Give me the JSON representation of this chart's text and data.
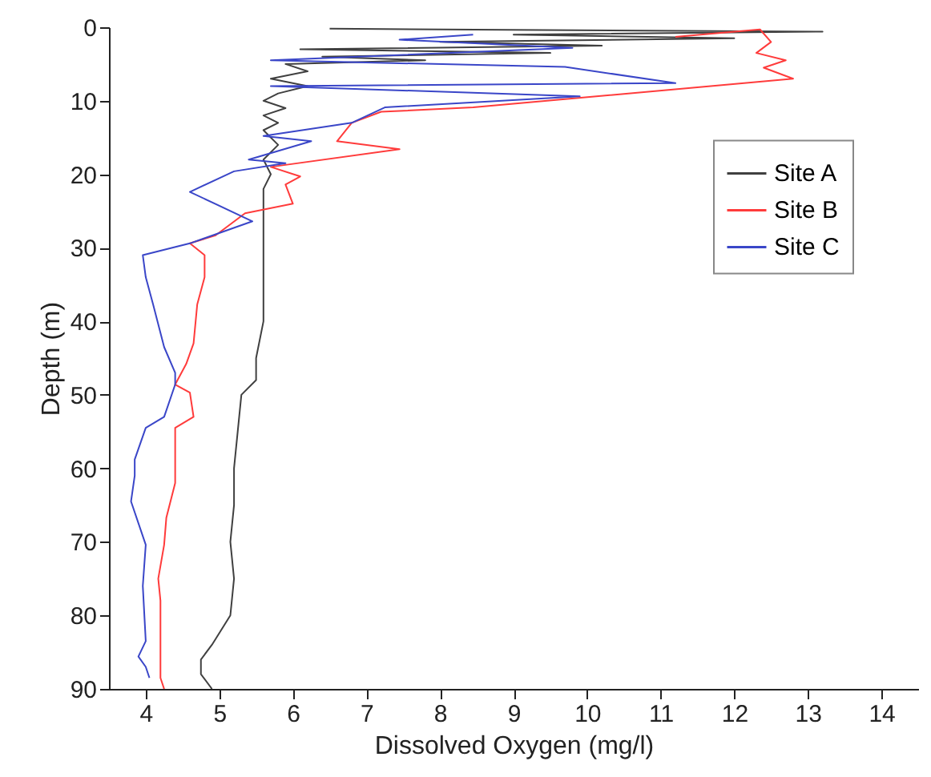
{
  "chart_data": {
    "type": "line",
    "xlabel": "Dissolved Oxygen (mg/l)",
    "ylabel": "Depth (m)",
    "xlim": [
      3.5,
      14.5
    ],
    "xticks": [
      4,
      5,
      6,
      7,
      8,
      9,
      10,
      11,
      12,
      13,
      14
    ],
    "ylim": [
      90,
      0
    ],
    "yticks": [
      0,
      10,
      20,
      30,
      40,
      50,
      60,
      70,
      80,
      90
    ],
    "grid": false,
    "legend": "right",
    "series": [
      {
        "name": "Site A",
        "color": "#404040",
        "x": [
          6.5,
          13.2,
          9.0,
          12.0,
          8.0,
          10.2,
          6.1,
          9.5,
          6.4,
          7.8,
          5.9,
          6.2,
          5.7,
          6.2,
          5.8,
          5.6,
          5.9,
          5.6,
          5.8,
          5.6,
          5.8,
          5.6,
          5.7,
          5.6,
          5.6,
          5.6,
          5.6,
          5.6,
          5.5,
          5.5,
          5.3,
          5.25,
          5.2,
          5.2,
          5.15,
          5.2,
          5.15,
          4.9,
          4.75,
          4.75,
          4.9
        ],
        "values": [
          0.2,
          0.6,
          1,
          1.5,
          2,
          2.5,
          3,
          3.5,
          4,
          4.5,
          5,
          6,
          7,
          8,
          9,
          10,
          11,
          12,
          13,
          14,
          16,
          18,
          20,
          22,
          25,
          30,
          35,
          40,
          45,
          48,
          50,
          55,
          60,
          65,
          70,
          75,
          80,
          84,
          86,
          88,
          90
        ]
      },
      {
        "name": "Site B",
        "color": "#ff3b3b",
        "x": [
          11.2,
          12.35,
          12.5,
          12.3,
          12.7,
          12.4,
          12.8,
          8.45,
          7.2,
          6.8,
          6.6,
          7.45,
          5.7,
          6.1,
          5.9,
          6.0,
          5.35,
          4.95,
          4.6,
          4.8,
          4.8,
          4.7,
          4.65,
          4.55,
          4.4,
          4.6,
          4.65,
          4.4,
          4.4,
          4.28,
          4.25,
          4.17,
          4.2,
          4.2,
          4.25
        ],
        "values": [
          1.3,
          0.3,
          2,
          3.5,
          4.5,
          5.5,
          7,
          10.9,
          11.5,
          13,
          15.5,
          16.6,
          19,
          20.3,
          21.4,
          24,
          25.3,
          28.3,
          29.4,
          31,
          34,
          37.7,
          43,
          45.8,
          48.6,
          49.7,
          53,
          54.5,
          62,
          66.7,
          70.4,
          75,
          78,
          88.5,
          90
        ]
      },
      {
        "name": "Site C",
        "color": "#3a46c8",
        "x": [
          8.45,
          7.45,
          9.8,
          5.7,
          9.7,
          11.2,
          5.7,
          9.9,
          7.25,
          6.8,
          5.6,
          6.25,
          5.4,
          5.9,
          5.2,
          4.6,
          5.45,
          4.6,
          3.96,
          4.0,
          4.1,
          4.25,
          4.4,
          4.4,
          4.25,
          4.0,
          3.85,
          3.85,
          3.8,
          4.0,
          3.96,
          4.0,
          3.9,
          4.0,
          4.05
        ],
        "values": [
          1,
          1.7,
          2.8,
          4.5,
          5.4,
          7.6,
          8,
          9.4,
          10.9,
          13,
          14.8,
          15.5,
          18,
          18.5,
          19.6,
          22.4,
          26.4,
          29.4,
          31,
          34,
          37.7,
          43.5,
          47,
          48.6,
          53,
          54.5,
          58.8,
          61,
          64.5,
          70.4,
          76,
          83.5,
          85.6,
          87,
          88.5
        ]
      }
    ]
  }
}
